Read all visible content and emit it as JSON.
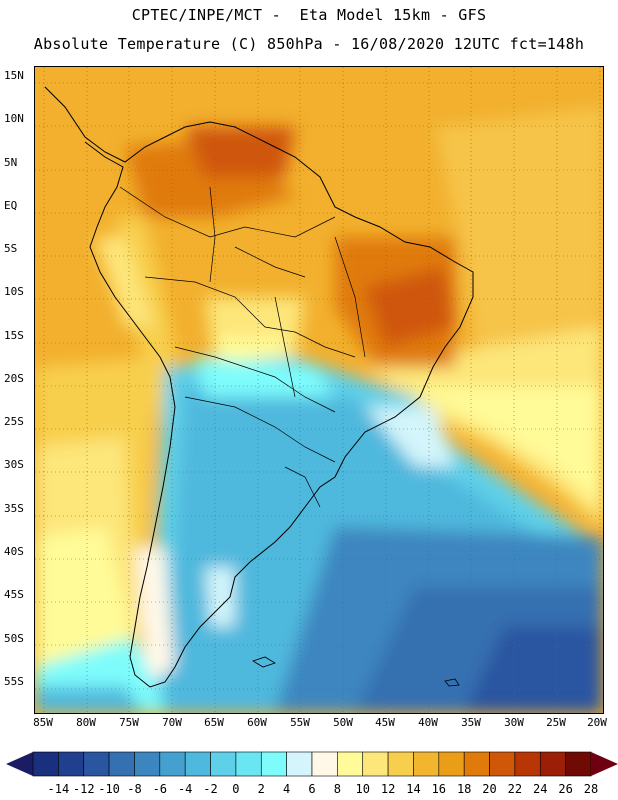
{
  "header": {
    "line1": "CPTEC/INPE/MCT -  Eta Model 15km - GFS",
    "line2": "Absolute Temperature (C) 850hPa - 16/08/2020 12UTC fct=148h"
  },
  "lat_labels": [
    "15N",
    "10N",
    "5N",
    "EQ",
    "5S",
    "10S",
    "15S",
    "20S",
    "25S",
    "30S",
    "35S",
    "40S",
    "45S",
    "50S",
    "55S"
  ],
  "lon_labels": [
    "85W",
    "80W",
    "75W",
    "70W",
    "65W",
    "60W",
    "55W",
    "50W",
    "45W",
    "40W",
    "35W",
    "30W",
    "25W",
    "20W"
  ],
  "colorbar": {
    "labels": [
      "-14",
      "-12",
      "-10",
      "-8",
      "-6",
      "-4",
      "-2",
      "0",
      "2",
      "4",
      "6",
      "8",
      "10",
      "12",
      "14",
      "16",
      "18",
      "20",
      "22",
      "24",
      "26",
      "28"
    ],
    "colors": [
      "#1a2f7e",
      "#203f8f",
      "#2a55a0",
      "#3570b1",
      "#3c86bf",
      "#44a0cf",
      "#4fb8dd",
      "#5fd0e9",
      "#6ae6f3",
      "#7efcfc",
      "#d3f5fb",
      "#fff8e8",
      "#fffb98",
      "#fde67a",
      "#f8cf4d",
      "#f2b62e",
      "#ea9d17",
      "#e07a0b",
      "#cf5708",
      "#b83606",
      "#9a1f06",
      "#6f0a04"
    ],
    "left_arrow_color": "#1b1c64",
    "right_arrow_color": "#6e0012"
  }
}
